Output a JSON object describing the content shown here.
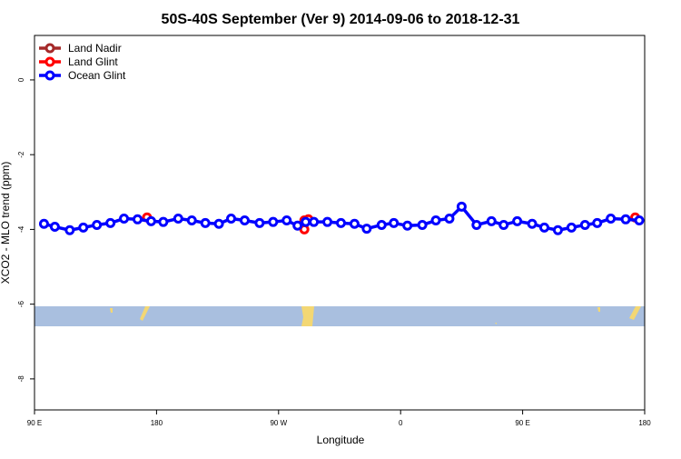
{
  "chart_data": {
    "type": "line",
    "title": "50S-40S September (Ver 9)   2014-09-06 to 2018-12-31",
    "x_label": "Longitude",
    "y_label": "XCO2 - MLO trend (ppm)",
    "xlim": [
      90,
      540
    ],
    "ylim": [
      -8.83,
      1.19
    ],
    "xticks": [
      {
        "value": 90,
        "label": "90 E"
      },
      180,
      {
        "value": 270,
        "label": "90 W"
      },
      {
        "value": 360,
        "label": "0"
      },
      {
        "value": 450,
        "label": "90 E"
      },
      {
        "value": 540,
        "label": "180"
      }
    ],
    "yticks": [
      0,
      -2,
      -4,
      -6,
      -8
    ],
    "legend": "top-left",
    "series": [
      {
        "name": "Land Nadir",
        "color": "#a52a2a",
        "mode": "markers",
        "x": [],
        "values": []
      },
      {
        "name": "Land Glint",
        "color": "#ff0000",
        "mode": "markers",
        "x": [
          173,
          289,
          289,
          292,
          533
        ],
        "values": [
          -3.68,
          -3.76,
          -4.0,
          -3.73,
          -3.68
        ]
      },
      {
        "name": "Ocean Glint",
        "color": "#0000ff",
        "mode": "lines+markers",
        "x": [
          97,
          105,
          116,
          126,
          136,
          146,
          156,
          166,
          176,
          185,
          196,
          206,
          216,
          226,
          235,
          245,
          256,
          266,
          276,
          284,
          290,
          296,
          306,
          316,
          326,
          335,
          346,
          355,
          365,
          376,
          386,
          396,
          405,
          416,
          427,
          436,
          446,
          457,
          466,
          476,
          486,
          496,
          505,
          515,
          526,
          536
        ],
        "values": [
          -3.85,
          -3.93,
          -4.02,
          -3.95,
          -3.88,
          -3.83,
          -3.71,
          -3.73,
          -3.78,
          -3.8,
          -3.71,
          -3.76,
          -3.83,
          -3.85,
          -3.71,
          -3.76,
          -3.83,
          -3.8,
          -3.76,
          -3.9,
          -3.8,
          -3.8,
          -3.8,
          -3.83,
          -3.85,
          -3.98,
          -3.88,
          -3.83,
          -3.9,
          -3.88,
          -3.76,
          -3.71,
          -3.39,
          -3.88,
          -3.78,
          -3.88,
          -3.78,
          -3.85,
          -3.95,
          -4.02,
          -3.95,
          -3.88,
          -3.83,
          -3.71,
          -3.73,
          -3.76
        ]
      }
    ]
  }
}
